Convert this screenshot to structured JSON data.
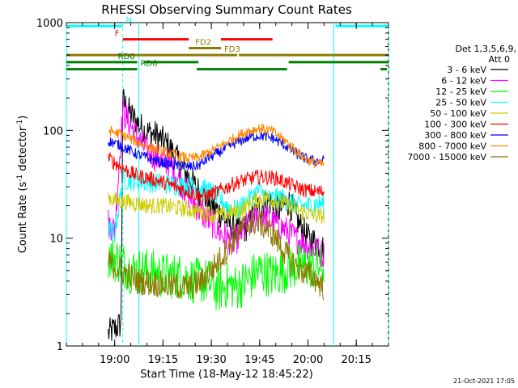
{
  "chart_data": {
    "type": "line",
    "title": "RHESSI Observing Summary Count Rates",
    "xlabel": "Start Time (18-May-12 18:45:22)",
    "ylabel_main": "Count Rate (s",
    "ylabel_sup": "-1",
    "ylabel_mid": " detector",
    "ylabel_sup2": "-1",
    "ylabel_end": ")",
    "y_scale": "log",
    "ylim": [
      1,
      1000
    ],
    "xlim_min": [
      0,
      100
    ],
    "x_ticks": [
      {
        "label": "19:00",
        "t": 15
      },
      {
        "label": "19:15",
        "t": 30
      },
      {
        "label": "19:30",
        "t": 45
      },
      {
        "label": "19:45",
        "t": 60
      },
      {
        "label": "20:00",
        "t": 75
      },
      {
        "label": "20:15",
        "t": 90
      }
    ],
    "y_ticks": [
      {
        "label": "1",
        "v": 1
      },
      {
        "label": "10",
        "v": 10
      },
      {
        "label": "100",
        "v": 100
      },
      {
        "label": "1000",
        "v": 1000
      }
    ],
    "legend": {
      "header1": "Det 1,3,5,6,9,",
      "header2": "Att 0",
      "position": "right",
      "entries": [
        {
          "label": "3 - 6 keV",
          "color": "#000000"
        },
        {
          "label": "6 - 12 keV",
          "color": "#ff00ff"
        },
        {
          "label": "12 - 25 keV",
          "color": "#00ff00"
        },
        {
          "label": "25 - 50 keV",
          "color": "#00ffff"
        },
        {
          "label": "50 - 100 keV",
          "color": "#cccc00"
        },
        {
          "label": "100 - 300 keV",
          "color": "#ff0000"
        },
        {
          "label": "300 - 800 keV",
          "color": "#0000ff"
        },
        {
          "label": "800 - 7000 keV",
          "color": "#ff8800"
        },
        {
          "label": "7000 - 15000 keV",
          "color": "#8b7b00"
        }
      ]
    },
    "flag_bars": [
      {
        "label": "N",
        "color": "#00ffff",
        "segments": [
          [
            0,
            17.5
          ],
          [
            83.5,
            100
          ]
        ],
        "level": 930,
        "label_t": 18.5
      },
      {
        "label": "F",
        "color": "#ff0000",
        "segments": [
          [
            17.5,
            38
          ],
          [
            48,
            64
          ]
        ],
        "level": 700,
        "label_t": 15
      },
      {
        "label": "FD2",
        "color": "#8b7b00",
        "segments": [
          [
            38,
            48
          ]
        ],
        "level": 580,
        "label_t": 40
      },
      {
        "label": "FD3",
        "color": "#8b7b00",
        "segments": [
          [
            0,
            53
          ],
          [
            53.5,
            100
          ]
        ],
        "level": 500,
        "label_t": 49
      },
      {
        "label": "RD0",
        "color": "#008000",
        "segments": [
          [
            0,
            22
          ],
          [
            24,
            41
          ],
          [
            69,
            100
          ]
        ],
        "level": 430,
        "label_t": 16
      },
      {
        "label": "RD6",
        "color": "#008000",
        "segments": [
          [
            0,
            22
          ],
          [
            40.5,
            68.5
          ],
          [
            97.5,
            99.5
          ]
        ],
        "level": 370,
        "label_t": 23
      }
    ],
    "night_lines": [
      {
        "t": 0,
        "color": "#00ffff",
        "style": "solid"
      },
      {
        "t": 17.5,
        "color": "#00ffff",
        "style": "dashed"
      },
      {
        "t": 22.5,
        "color": "#00ffff",
        "style": "solid"
      },
      {
        "t": 83,
        "color": "#00ffff",
        "style": "solid"
      },
      {
        "t": 100,
        "color": "#00ffff",
        "style": "dashed"
      }
    ],
    "series": [
      {
        "name": "3 - 6 keV",
        "color": "#000000",
        "noise": 0.14,
        "points": [
          [
            13,
            1.3
          ],
          [
            17,
            1.6
          ],
          [
            17.5,
            190
          ],
          [
            20,
            140
          ],
          [
            24,
            100
          ],
          [
            28,
            90
          ],
          [
            32,
            70
          ],
          [
            36,
            45
          ],
          [
            40,
            30
          ],
          [
            44,
            22
          ],
          [
            47,
            18
          ],
          [
            50,
            14
          ],
          [
            54,
            11
          ],
          [
            57,
            14
          ],
          [
            60,
            20
          ],
          [
            63,
            22
          ],
          [
            66,
            18
          ],
          [
            69,
            22
          ],
          [
            72,
            14
          ],
          [
            75,
            10
          ],
          [
            78,
            9
          ],
          [
            80,
            8
          ]
        ]
      },
      {
        "name": "6 - 12 keV",
        "color": "#ff00ff",
        "noise": 0.14,
        "points": [
          [
            13,
            14
          ],
          [
            15,
            12
          ],
          [
            17.5,
            150
          ],
          [
            20,
            110
          ],
          [
            24,
            70
          ],
          [
            28,
            55
          ],
          [
            32,
            50
          ],
          [
            35,
            35
          ],
          [
            38,
            25
          ],
          [
            42,
            17
          ],
          [
            45,
            14
          ],
          [
            48,
            11
          ],
          [
            52,
            9
          ],
          [
            56,
            13
          ],
          [
            60,
            16
          ],
          [
            64,
            14
          ],
          [
            68,
            12
          ],
          [
            71,
            10
          ],
          [
            74,
            9
          ],
          [
            77,
            8
          ],
          [
            80,
            7
          ]
        ]
      },
      {
        "name": "12 - 25 keV",
        "color": "#00ff00",
        "noise": 0.22,
        "points": [
          [
            13,
            7
          ],
          [
            17,
            6
          ],
          [
            20,
            5
          ],
          [
            25,
            5
          ],
          [
            30,
            4.5
          ],
          [
            35,
            4.5
          ],
          [
            40,
            4
          ],
          [
            44,
            4
          ],
          [
            47,
            3.3
          ],
          [
            50,
            3.7
          ],
          [
            53,
            3.5
          ],
          [
            56,
            4
          ],
          [
            60,
            5
          ],
          [
            64,
            4.5
          ],
          [
            67,
            5
          ],
          [
            71,
            5.5
          ],
          [
            75,
            5.5
          ],
          [
            80,
            5.5
          ]
        ]
      },
      {
        "name": "25 - 50 keV",
        "color": "#00ffff",
        "noise": 0.1,
        "points": [
          [
            13,
            12
          ],
          [
            15,
            11
          ],
          [
            17.5,
            35
          ],
          [
            22,
            34
          ],
          [
            26,
            33
          ],
          [
            30,
            32
          ],
          [
            35,
            31
          ],
          [
            40,
            30
          ],
          [
            44,
            28
          ],
          [
            47,
            24
          ],
          [
            50,
            20
          ],
          [
            53,
            18
          ],
          [
            56,
            22
          ],
          [
            60,
            28
          ],
          [
            63,
            23
          ],
          [
            66,
            24
          ],
          [
            69,
            22
          ],
          [
            72,
            20
          ],
          [
            75,
            20
          ],
          [
            78,
            21
          ],
          [
            80,
            21
          ]
        ]
      },
      {
        "name": "50 - 100 keV",
        "color": "#cccc00",
        "noise": 0.08,
        "points": [
          [
            13,
            24
          ],
          [
            16,
            22
          ],
          [
            17.5,
            22
          ],
          [
            22,
            21
          ],
          [
            26,
            20
          ],
          [
            30,
            20
          ],
          [
            35,
            19
          ],
          [
            40,
            18
          ],
          [
            44,
            17
          ],
          [
            47,
            16
          ],
          [
            50,
            17
          ],
          [
            54,
            18
          ],
          [
            58,
            22
          ],
          [
            62,
            24
          ],
          [
            66,
            22
          ],
          [
            69,
            20
          ],
          [
            72,
            18
          ],
          [
            75,
            17
          ],
          [
            78,
            16
          ],
          [
            80,
            16
          ]
        ]
      },
      {
        "name": "100 - 300 keV",
        "color": "#ff0000",
        "noise": 0.07,
        "points": [
          [
            13,
            55
          ],
          [
            16,
            48
          ],
          [
            19,
            42
          ],
          [
            22,
            38
          ],
          [
            26,
            36
          ],
          [
            30,
            33
          ],
          [
            34,
            30
          ],
          [
            38,
            27
          ],
          [
            41,
            25
          ],
          [
            44,
            25
          ],
          [
            47,
            27
          ],
          [
            50,
            30
          ],
          [
            53,
            33
          ],
          [
            56,
            35
          ],
          [
            59,
            37
          ],
          [
            62,
            37
          ],
          [
            65,
            36
          ],
          [
            68,
            33
          ],
          [
            71,
            30
          ],
          [
            74,
            28
          ],
          [
            77,
            27
          ],
          [
            80,
            27
          ]
        ]
      },
      {
        "name": "300 - 800 keV",
        "color": "#0000ff",
        "noise": 0.05,
        "points": [
          [
            13,
            80
          ],
          [
            17,
            72
          ],
          [
            22,
            60
          ],
          [
            28,
            52
          ],
          [
            33,
            48
          ],
          [
            38,
            46
          ],
          [
            41,
            47
          ],
          [
            44,
            55
          ],
          [
            48,
            64
          ],
          [
            52,
            75
          ],
          [
            56,
            85
          ],
          [
            60,
            90
          ],
          [
            64,
            85
          ],
          [
            68,
            72
          ],
          [
            71,
            62
          ],
          [
            74,
            55
          ],
          [
            77,
            52
          ],
          [
            80,
            52
          ]
        ]
      },
      {
        "name": "800 - 7000 keV",
        "color": "#ff8800",
        "noise": 0.05,
        "points": [
          [
            13,
            100
          ],
          [
            17,
            92
          ],
          [
            22,
            78
          ],
          [
            28,
            66
          ],
          [
            33,
            60
          ],
          [
            38,
            55
          ],
          [
            41,
            56
          ],
          [
            44,
            62
          ],
          [
            48,
            72
          ],
          [
            52,
            85
          ],
          [
            56,
            98
          ],
          [
            60,
            105
          ],
          [
            64,
            98
          ],
          [
            68,
            80
          ],
          [
            71,
            66
          ],
          [
            74,
            55
          ],
          [
            77,
            50
          ],
          [
            80,
            48
          ]
        ]
      },
      {
        "name": "7000 - 15000 keV",
        "color": "#8b7b00",
        "noise": 0.13,
        "points": [
          [
            13,
            6
          ],
          [
            17,
            5
          ],
          [
            22,
            4
          ],
          [
            28,
            3.8
          ],
          [
            33,
            3.6
          ],
          [
            38,
            3.5
          ],
          [
            42,
            4
          ],
          [
            46,
            5.5
          ],
          [
            50,
            8
          ],
          [
            54,
            12
          ],
          [
            57,
            14
          ],
          [
            60,
            14
          ],
          [
            64,
            11
          ],
          [
            67,
            8
          ],
          [
            70,
            6
          ],
          [
            73,
            5
          ],
          [
            76,
            4.5
          ],
          [
            80,
            3.5
          ]
        ]
      }
    ]
  },
  "footer": {
    "date_stamp": "21-Oct-2021 17:05"
  }
}
